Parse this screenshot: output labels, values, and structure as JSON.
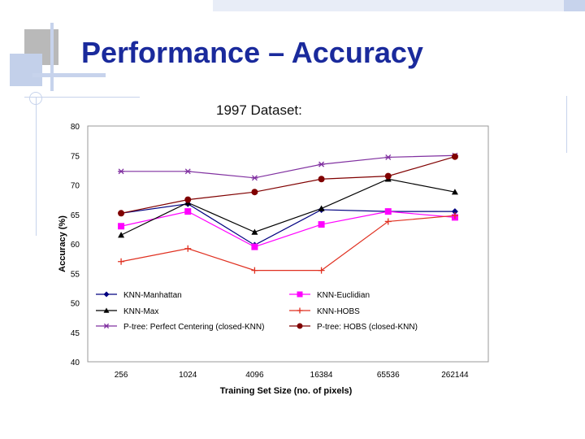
{
  "slide": {
    "title": "Performance – Accuracy",
    "subtitle": "1997 Dataset:"
  },
  "chart_data": {
    "type": "line",
    "xlabel": "Training Set Size (no. of pixels)",
    "ylabel": "Accuracy (%)",
    "ylim": [
      40,
      80
    ],
    "yticks": [
      "40",
      "45",
      "50",
      "55",
      "60",
      "65",
      "70",
      "75",
      "80"
    ],
    "categories": [
      "256",
      "1024",
      "4096",
      "16384",
      "65536",
      "262144"
    ],
    "grid": false,
    "legend_position": "bottom-inside",
    "series": [
      {
        "name": "KNN-Manhattan",
        "color": "#000080",
        "marker": "diamond",
        "values": [
          65.2,
          66.8,
          59.8,
          65.8,
          65.5,
          65.5
        ]
      },
      {
        "name": "KNN-Euclidian",
        "color": "#ff00ff",
        "marker": "square",
        "values": [
          63.0,
          65.5,
          59.5,
          63.3,
          65.5,
          64.5
        ]
      },
      {
        "name": "KNN-Max",
        "color": "#000000",
        "marker": "triangle",
        "values": [
          61.5,
          67.0,
          62.0,
          66.0,
          71.0,
          68.8
        ]
      },
      {
        "name": "KNN-HOBS",
        "color": "#e03020",
        "marker": "plus",
        "values": [
          57.0,
          59.2,
          55.5,
          55.5,
          63.8,
          64.8
        ]
      },
      {
        "name": "P-tree: Perfect Centering (closed-KNN)",
        "color": "#8030a0",
        "marker": "star",
        "values": [
          72.3,
          72.3,
          71.2,
          73.5,
          74.7,
          75.0
        ]
      },
      {
        "name": "P-tree: HOBS (closed-KNN)",
        "color": "#800000",
        "marker": "circle",
        "values": [
          65.2,
          67.5,
          68.8,
          71.0,
          71.5,
          74.8
        ]
      }
    ]
  }
}
